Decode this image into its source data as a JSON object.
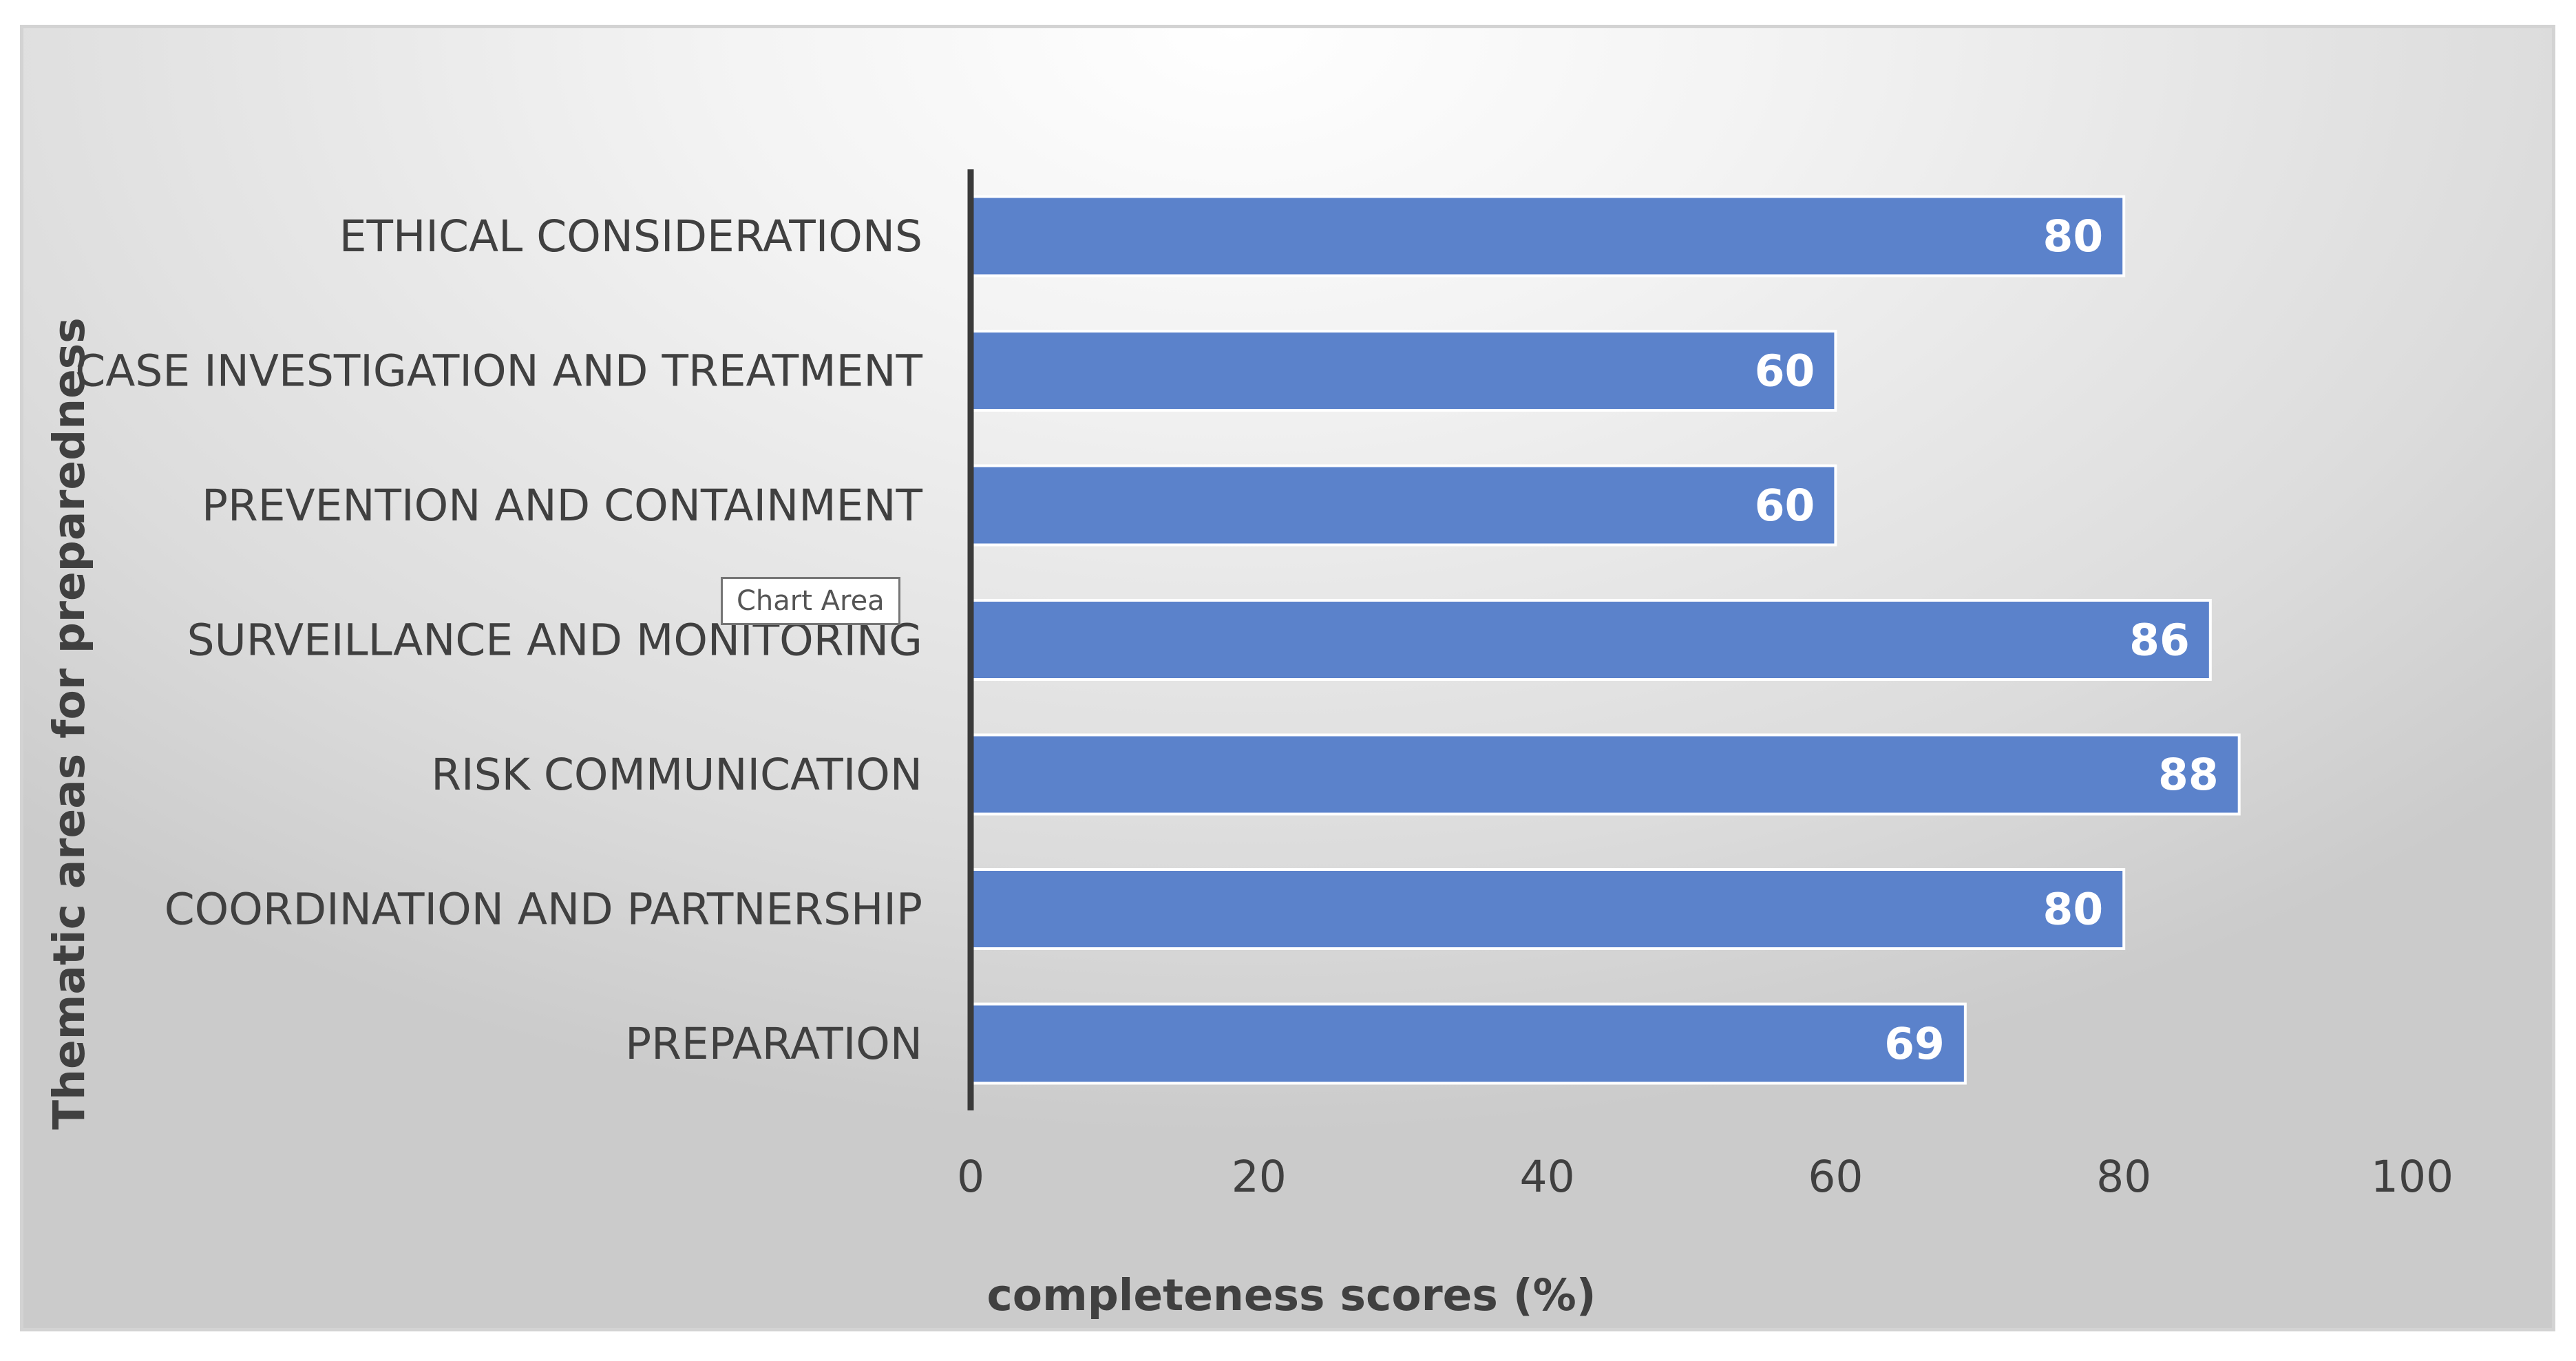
{
  "chart_data": {
    "type": "bar",
    "orientation": "horizontal",
    "categories": [
      "ETHICAL CONSIDERATIONS",
      "CASE INVESTIGATION AND TREATMENT",
      "PREVENTION AND CONTAINMENT",
      "SURVEILLANCE AND MONITORING",
      "RISK COMMUNICATION",
      "COORDINATION AND PARTNERSHIP",
      "PREPARATION"
    ],
    "values": [
      80,
      60,
      60,
      86,
      88,
      80,
      69
    ],
    "xlabel": "completeness scores (%)",
    "ylabel": "Thematic areas for preparedness",
    "xlim": [
      0,
      100
    ],
    "xticks": [
      0,
      20,
      40,
      60,
      80,
      100
    ],
    "data_labels": true,
    "grid": false,
    "bar_color": "#5b82cb"
  },
  "tooltip": {
    "text": "Chart Area"
  }
}
